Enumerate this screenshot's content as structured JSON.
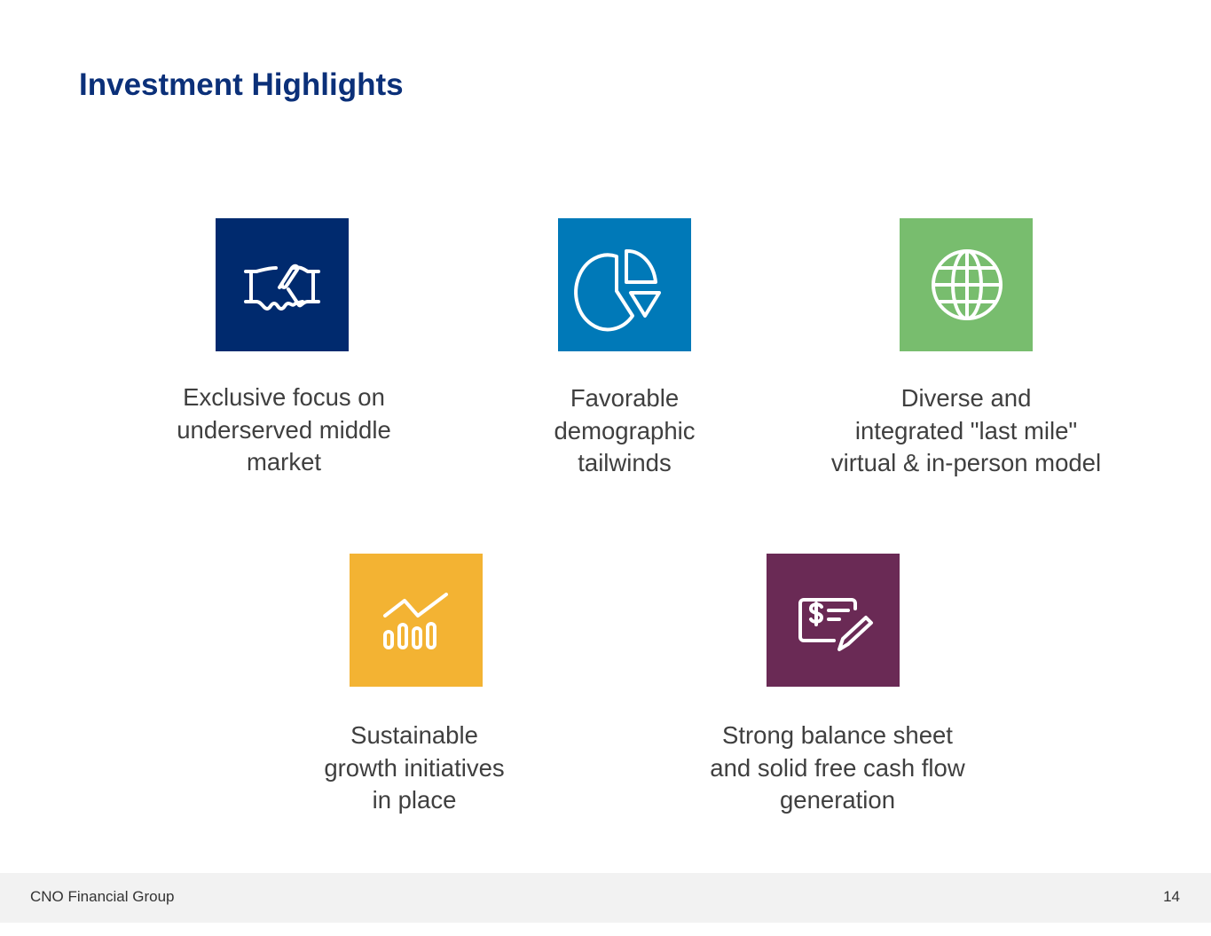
{
  "title": "Investment Highlights",
  "highlights": [
    {
      "icon": "handshake-icon",
      "color": "#002a6e",
      "text": "Exclusive focus on\nunderserved middle\nmarket"
    },
    {
      "icon": "pie-chart-icon",
      "color": "#0079b8",
      "text": "Favorable\ndemographic\ntailwinds"
    },
    {
      "icon": "globe-icon",
      "color": "#78bd6e",
      "text": "Diverse and\nintegrated \"last mile\"\nvirtual & in-person model"
    },
    {
      "icon": "growth-chart-icon",
      "color": "#f3b333",
      "text": "Sustainable\ngrowth initiatives\nin place"
    },
    {
      "icon": "check-pen-icon",
      "color": "#6a2a55",
      "text": "Strong balance sheet\nand solid free cash flow\ngeneration"
    }
  ],
  "footer": {
    "company": "CNO Financial Group",
    "page": "14"
  }
}
